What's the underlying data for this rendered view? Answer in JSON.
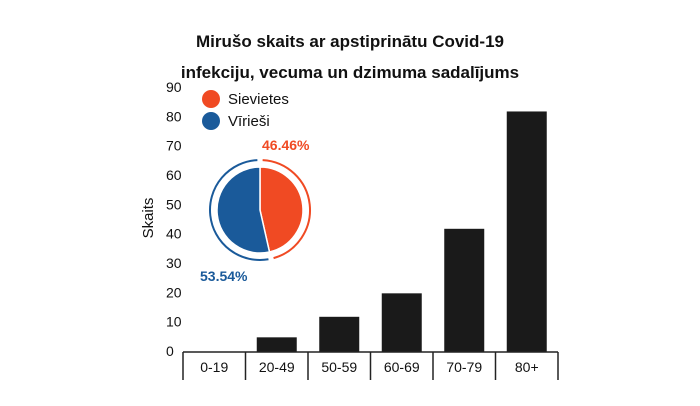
{
  "title_line1": "Mirušo skaits ar apstiprinātu Covid-19",
  "title_line2": "infekciju, vecuma un dzimuma sadalījums",
  "chart_data": [
    {
      "type": "bar",
      "categories": [
        "0-19",
        "20-49",
        "50-59",
        "60-69",
        "70-79",
        "80+"
      ],
      "values": [
        0,
        5,
        12,
        20,
        42,
        82
      ],
      "ylabel": "Skaits",
      "ylim": [
        0,
        90
      ],
      "yticks": [
        0,
        10,
        20,
        30,
        40,
        50,
        60,
        70,
        80,
        90
      ],
      "bar_color": "#1a1a1a",
      "grid": false
    },
    {
      "type": "pie",
      "labels": [
        "Sievietes",
        "Vīrieši"
      ],
      "values": [
        46.46,
        53.54
      ],
      "value_labels": [
        "46.46%",
        "53.54%"
      ],
      "colors": [
        "#f04a23",
        "#1a5a9a"
      ],
      "legend_position": "top-left"
    }
  ]
}
